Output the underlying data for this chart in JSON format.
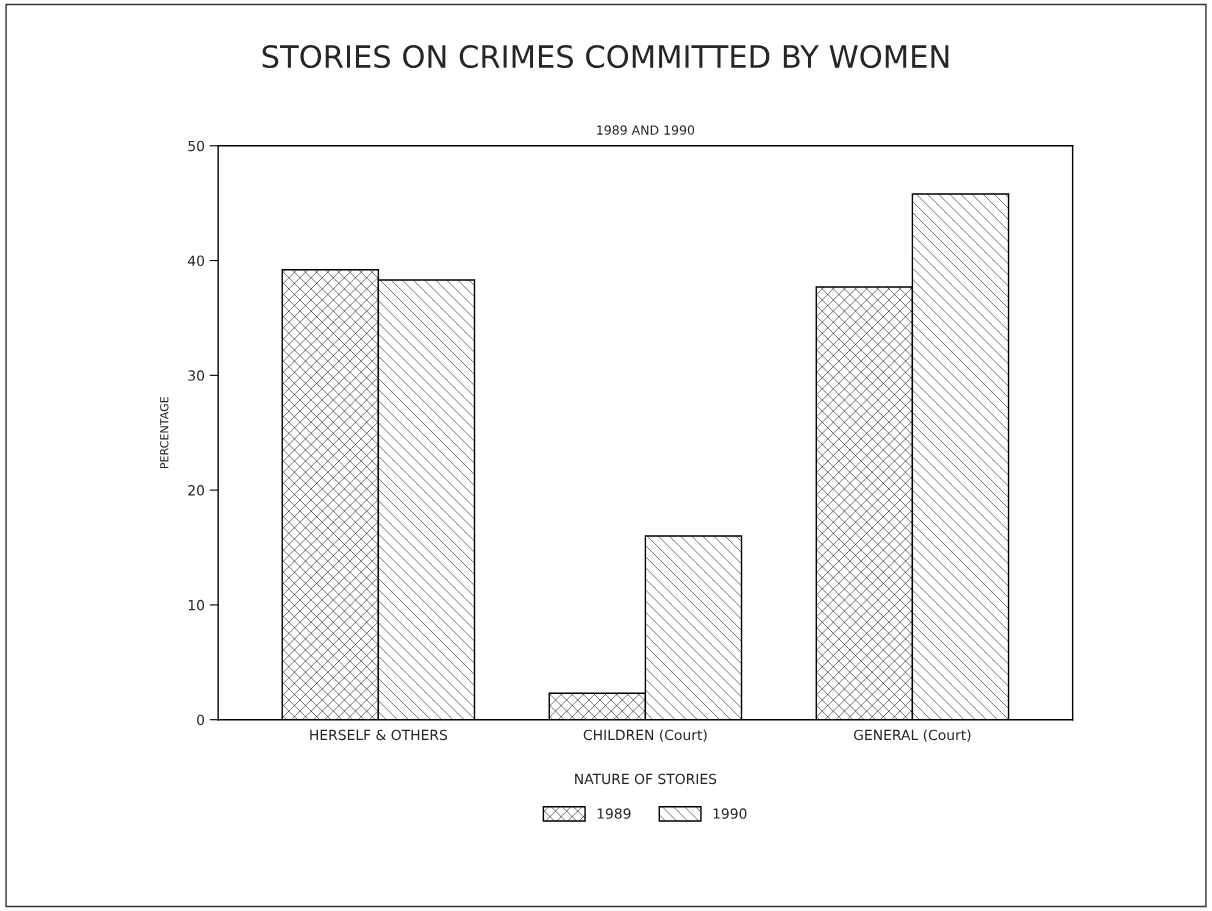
{
  "chart_data": {
    "type": "bar",
    "title": "STORIES ON CRIMES COMMITTED BY WOMEN",
    "subtitle": "1989 AND 1990",
    "xlabel": "NATURE OF STORIES",
    "ylabel": "PERCENTAGE",
    "categories": [
      "HERSELF & OTHERS",
      "CHILDREN (Court)",
      "GENERAL (Court)"
    ],
    "series": [
      {
        "name": "1989",
        "color": "#000000",
        "values": [
          39.2,
          2.3,
          37.7
        ]
      },
      {
        "name": "1990",
        "color": "#000000",
        "values": [
          38.3,
          16.0,
          45.8
        ]
      }
    ],
    "ylim": [
      0,
      50
    ],
    "yticks": [
      0,
      10,
      20,
      30,
      40,
      50
    ],
    "grid": false,
    "legend": "bottom"
  }
}
